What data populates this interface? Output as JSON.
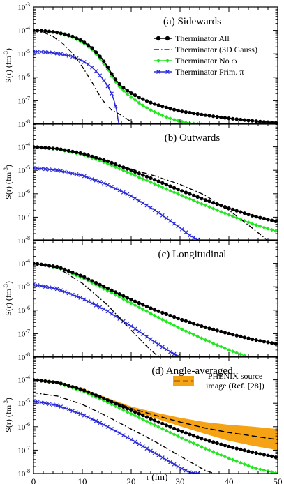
{
  "figure": {
    "xlabel": "r (fm)",
    "ylabel_base": "S(r) (fm",
    "ylabel_exp": "-3",
    "ylabel_close": ")",
    "x_ticks": [
      0,
      10,
      20,
      30,
      40,
      50
    ],
    "y_tick_exponents": [
      -3,
      -4,
      -5,
      -6,
      -7,
      -8
    ]
  },
  "colors": {
    "all": "#000000",
    "gauss": "#000000",
    "no_omega": "#22e622",
    "prim_pi": "#2b2bd8",
    "phenix": "#f5a314"
  },
  "legend": {
    "all": "Therminator All",
    "gauss": "Therminator (3D Gauss)",
    "no_omega": "Therminator No ω",
    "prim_pi": "Therminator Prim. π",
    "phenix_line1": "PHENIX source",
    "phenix_line2": "image (Ref. [28])"
  },
  "chart_data": [
    {
      "type": "line",
      "title": "(a) Sidewards",
      "xlim": [
        0,
        50
      ],
      "ylim_log10": [
        -8,
        -3
      ],
      "y_scale": "log",
      "show_x_labels": false,
      "y_tick_labels": [
        "10^-3",
        "10^-4",
        "10^-5",
        "10^-6",
        "10^-7",
        "10^-8"
      ],
      "series": [
        {
          "name": "Therminator All",
          "x": [
            0,
            2,
            4,
            6,
            8,
            10,
            12,
            14,
            15,
            16,
            17,
            18,
            20,
            22,
            24,
            26,
            28,
            30,
            34,
            38,
            42,
            46,
            50
          ],
          "log10y": [
            -4.0,
            -4.02,
            -4.06,
            -4.14,
            -4.26,
            -4.45,
            -4.75,
            -5.2,
            -5.5,
            -5.85,
            -6.15,
            -6.38,
            -6.68,
            -6.9,
            -7.08,
            -7.22,
            -7.34,
            -7.44,
            -7.58,
            -7.7,
            -7.8,
            -7.88,
            -7.95
          ]
        },
        {
          "name": "Therminator (3D Gauss)",
          "x": [
            0,
            2,
            4,
            6,
            8,
            10,
            12,
            14,
            16,
            18,
            20,
            21
          ],
          "log10y": [
            -4.02,
            -4.08,
            -4.26,
            -4.56,
            -4.98,
            -5.55,
            -6.22,
            -6.95,
            -7.4,
            -7.62,
            -7.9,
            -8.0
          ]
        },
        {
          "name": "Therminator No ω",
          "x": [
            0,
            2,
            4,
            6,
            8,
            10,
            12,
            14,
            15,
            16,
            17,
            18,
            20,
            22,
            24,
            26,
            28,
            30,
            32,
            34,
            35
          ],
          "log10y": [
            -4.0,
            -4.03,
            -4.08,
            -4.16,
            -4.29,
            -4.5,
            -4.82,
            -5.3,
            -5.6,
            -5.95,
            -6.25,
            -6.5,
            -6.85,
            -7.15,
            -7.4,
            -7.6,
            -7.76,
            -7.88,
            -7.96,
            -8.0,
            -8.0
          ]
        },
        {
          "name": "Therminator Prim. π",
          "x": [
            0,
            2,
            4,
            6,
            8,
            10,
            11,
            12,
            13,
            14,
            15,
            16,
            16.5,
            17,
            17.3,
            17.5
          ],
          "log10y": [
            -4.9,
            -4.92,
            -4.96,
            -5.02,
            -5.12,
            -5.3,
            -5.42,
            -5.58,
            -5.78,
            -6.02,
            -6.3,
            -6.7,
            -7.0,
            -7.4,
            -7.8,
            -8.0
          ]
        }
      ]
    },
    {
      "type": "line",
      "title": "(b) Outwards",
      "xlim": [
        0,
        50
      ],
      "ylim_log10": [
        -8,
        -3
      ],
      "y_scale": "log",
      "show_x_labels": false,
      "y_tick_labels": [
        "",
        "10^-4",
        "10^-5",
        "10^-6",
        "10^-7",
        "10^-8"
      ],
      "series": [
        {
          "name": "Therminator All",
          "x": [
            0,
            5,
            10,
            15,
            20,
            25,
            30,
            35,
            40,
            45,
            50
          ],
          "log10y": [
            -4.0,
            -4.08,
            -4.28,
            -4.6,
            -5.0,
            -5.42,
            -5.85,
            -6.25,
            -6.62,
            -6.95,
            -7.2
          ]
        },
        {
          "name": "Therminator (3D Gauss)",
          "x": [
            0,
            5,
            10,
            15,
            20,
            25,
            30,
            35,
            40,
            45,
            48
          ],
          "log10y": [
            -4.0,
            -4.08,
            -4.3,
            -4.62,
            -4.95,
            -5.25,
            -5.6,
            -6.05,
            -6.7,
            -7.5,
            -8.0
          ]
        },
        {
          "name": "Therminator No ω",
          "x": [
            0,
            5,
            10,
            15,
            20,
            25,
            30,
            35,
            40,
            45,
            50
          ],
          "log10y": [
            -4.0,
            -4.1,
            -4.33,
            -4.7,
            -5.15,
            -5.6,
            -6.05,
            -6.48,
            -6.9,
            -7.3,
            -7.62
          ]
        },
        {
          "name": "Therminator Prim. π",
          "x": [
            0,
            5,
            10,
            15,
            20,
            25,
            30,
            32,
            34
          ],
          "log10y": [
            -4.9,
            -5.0,
            -5.22,
            -5.6,
            -6.1,
            -6.72,
            -7.45,
            -7.78,
            -8.0
          ]
        }
      ]
    },
    {
      "type": "line",
      "title": "(c) Longitudinal",
      "xlim": [
        0,
        50
      ],
      "ylim_log10": [
        -8,
        -3
      ],
      "y_scale": "log",
      "show_x_labels": false,
      "y_tick_labels": [
        "",
        "10^-4",
        "10^-5",
        "10^-6",
        "10^-7",
        "10^-8"
      ],
      "series": [
        {
          "name": "Therminator All",
          "x": [
            0,
            5,
            10,
            15,
            20,
            25,
            30,
            35,
            40,
            45,
            50
          ],
          "log10y": [
            -4.0,
            -4.15,
            -4.55,
            -5.05,
            -5.55,
            -6.0,
            -6.38,
            -6.72,
            -7.0,
            -7.25,
            -7.45
          ]
        },
        {
          "name": "Therminator (3D Gauss)",
          "x": [
            0,
            5,
            10,
            15,
            20,
            23,
            25,
            26
          ],
          "log10y": [
            -4.0,
            -4.2,
            -4.85,
            -5.75,
            -6.85,
            -7.5,
            -7.88,
            -8.0
          ]
        },
        {
          "name": "Therminator No ω",
          "x": [
            0,
            5,
            10,
            15,
            20,
            25,
            30,
            35,
            40,
            44
          ],
          "log10y": [
            -4.0,
            -4.18,
            -4.62,
            -5.15,
            -5.7,
            -6.25,
            -6.78,
            -7.25,
            -7.7,
            -8.0
          ]
        },
        {
          "name": "Therminator Prim. π",
          "x": [
            0,
            5,
            10,
            15,
            20,
            25,
            28,
            30
          ],
          "log10y": [
            -4.9,
            -5.1,
            -5.5,
            -6.02,
            -6.68,
            -7.38,
            -7.78,
            -8.0
          ]
        }
      ]
    },
    {
      "type": "line",
      "title": "(d) Angle-averaged",
      "xlim": [
        0,
        50
      ],
      "ylim_log10": [
        -8,
        -3
      ],
      "y_scale": "log",
      "show_x_labels": true,
      "y_tick_labels": [
        "",
        "10^-4",
        "10^-5",
        "10^-6",
        "10^-7",
        "10^-8"
      ],
      "series": [
        {
          "name": "Therminator All",
          "x": [
            0,
            5,
            10,
            15,
            20,
            25,
            30,
            35,
            40,
            45,
            50
          ],
          "log10y": [
            -4.0,
            -4.12,
            -4.42,
            -4.85,
            -5.3,
            -5.75,
            -6.18,
            -6.55,
            -6.85,
            -7.1,
            -7.32
          ]
        },
        {
          "name": "Therminator (3D Gauss)",
          "x": [
            0,
            5,
            10,
            15,
            20,
            25,
            30,
            35,
            37
          ],
          "log10y": [
            -4.55,
            -4.7,
            -5.05,
            -5.55,
            -6.1,
            -6.65,
            -7.25,
            -7.85,
            -8.0
          ]
        },
        {
          "name": "Therminator No ω",
          "x": [
            0,
            5,
            10,
            15,
            20,
            25,
            30,
            35,
            40,
            45,
            50
          ],
          "log10y": [
            -4.0,
            -4.14,
            -4.48,
            -4.95,
            -5.45,
            -5.95,
            -6.45,
            -6.92,
            -7.35,
            -7.75,
            -8.0
          ]
        },
        {
          "name": "Therminator Prim. π",
          "x": [
            0,
            5,
            10,
            15,
            20,
            25,
            30,
            32,
            34
          ],
          "log10y": [
            -4.9,
            -5.1,
            -5.48,
            -5.98,
            -6.55,
            -7.15,
            -7.75,
            -7.95,
            -8.0
          ]
        },
        {
          "name": "PHENIX source image (Ref. [28])",
          "x": [
            0,
            5,
            10,
            15,
            20,
            25,
            30,
            35,
            40,
            45,
            50
          ],
          "log10y": [
            -4.0,
            -4.12,
            -4.42,
            -4.82,
            -5.22,
            -5.52,
            -5.8,
            -6.05,
            -6.25,
            -6.4,
            -6.55
          ],
          "band_log10_low": [
            -4.05,
            -4.17,
            -4.47,
            -4.88,
            -5.3,
            -5.65,
            -5.98,
            -6.3,
            -6.6,
            -6.82,
            -7.0
          ],
          "band_log10_high": [
            -3.95,
            -4.07,
            -4.37,
            -4.76,
            -5.14,
            -5.4,
            -5.62,
            -5.8,
            -5.92,
            -6.0,
            -6.1
          ]
        }
      ]
    }
  ]
}
